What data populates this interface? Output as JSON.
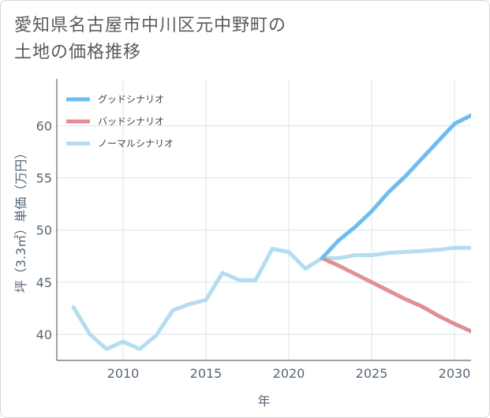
{
  "title": {
    "line1": "愛知県名古屋市中川区元中野町の",
    "line2": "土地の価格推移"
  },
  "chart_data": {
    "type": "line",
    "title": "愛知県名古屋市中川区元中野町の土地の価格推移",
    "xlabel": "年",
    "ylabel": "坪（3.3㎡）単価（万円）",
    "xlim": [
      2006,
      2031
    ],
    "ylim": [
      37.5,
      64.5
    ],
    "xticks": [
      2010,
      2015,
      2020,
      2025,
      2030
    ],
    "yticks": [
      40,
      45,
      50,
      55,
      60
    ],
    "grid": true,
    "legend_position": "top-left",
    "series": [
      {
        "name": "グッドシナリオ",
        "color": "#6fbcf0",
        "x": [
          2022,
          2023,
          2024,
          2025,
          2026,
          2027,
          2028,
          2029,
          2030,
          2031
        ],
        "values": [
          47.3,
          49.0,
          50.3,
          51.8,
          53.6,
          55.1,
          56.8,
          58.5,
          60.2,
          61.0
        ]
      },
      {
        "name": "バッドシナリオ",
        "color": "#e08f96",
        "x": [
          2022,
          2023,
          2024,
          2025,
          2026,
          2027,
          2028,
          2029,
          2030,
          2031
        ],
        "values": [
          47.3,
          46.6,
          45.8,
          45.0,
          44.2,
          43.4,
          42.7,
          41.8,
          41.0,
          40.3
        ]
      },
      {
        "name": "ノーマルシナリオ",
        "color": "#b5ddf0",
        "x": [
          2007,
          2008,
          2009,
          2010,
          2011,
          2012,
          2013,
          2014,
          2015,
          2016,
          2017,
          2018,
          2019,
          2020,
          2021,
          2022,
          2023,
          2024,
          2025,
          2026,
          2027,
          2028,
          2029,
          2030,
          2031
        ],
        "values": [
          42.6,
          40.0,
          38.6,
          39.3,
          38.6,
          39.9,
          42.3,
          42.9,
          43.3,
          45.9,
          45.2,
          45.2,
          48.2,
          47.9,
          46.3,
          47.3,
          47.3,
          47.6,
          47.6,
          47.8,
          47.9,
          48.0,
          48.1,
          48.3,
          48.3
        ]
      }
    ]
  }
}
